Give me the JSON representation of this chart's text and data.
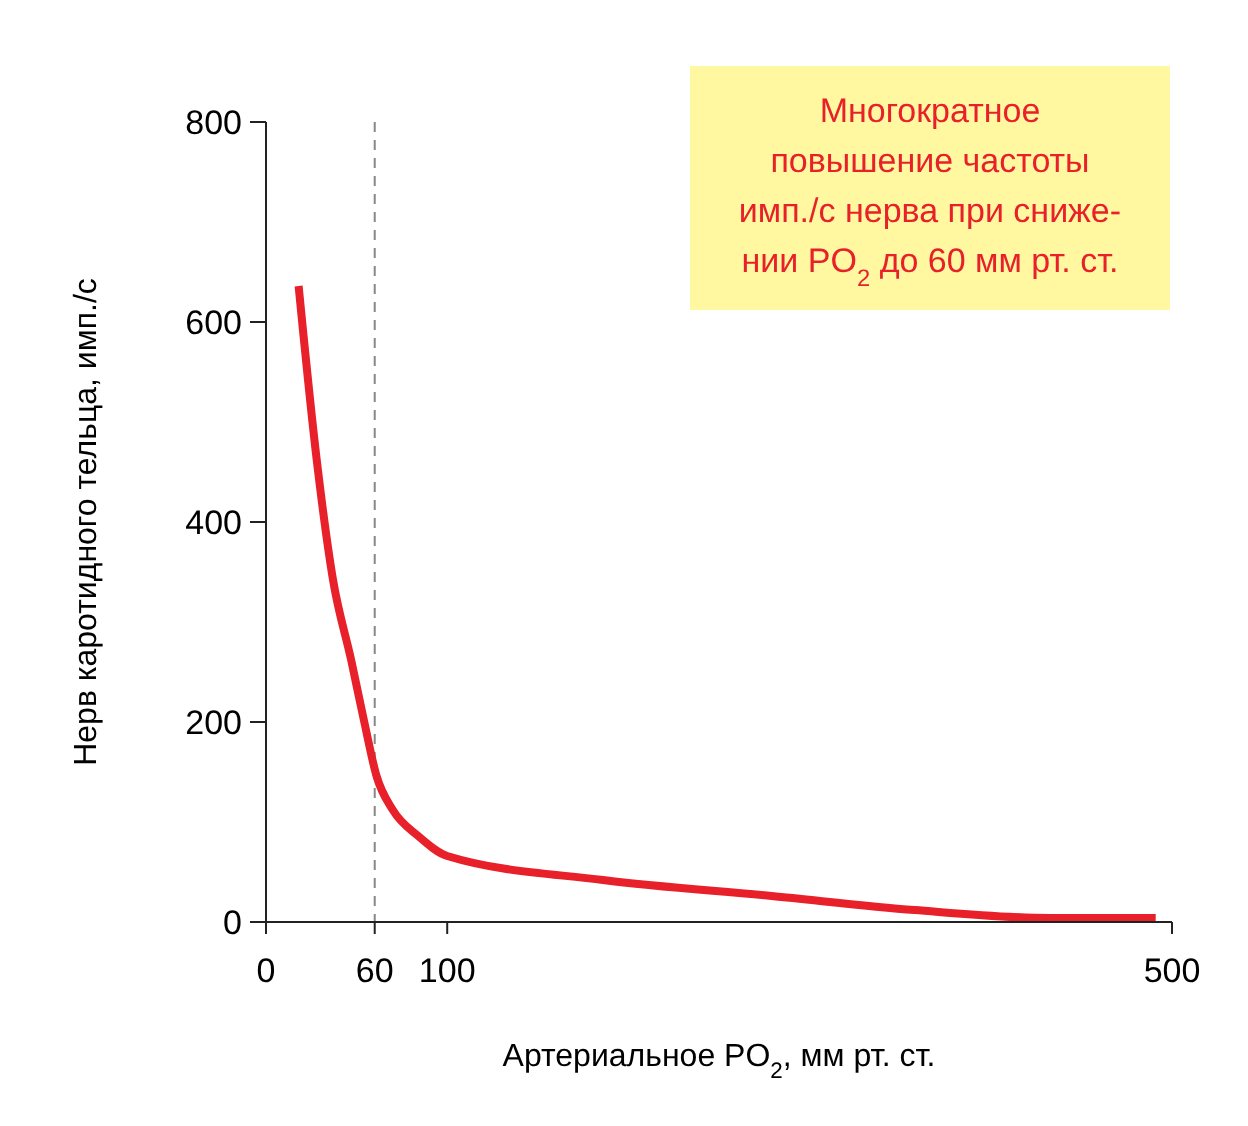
{
  "chart_data": {
    "type": "line",
    "xlabel": "Артериальное PO$_{2}$, мм рт. ст.",
    "ylabel": "Нерв каротидного тельца, имп./с",
    "annotations": [
      "Многократное\nповышение частоты\nимп./с нерва при сниже-\nнии PO$_{2}$ до 60 мм рт. ст."
    ],
    "xlim": [
      0,
      500
    ],
    "xticks": [
      0,
      60,
      100,
      500
    ],
    "ylim": [
      0,
      800
    ],
    "yticks": [
      0,
      200,
      400,
      600,
      800
    ],
    "grid": false,
    "marker": "none",
    "line_style": "solid",
    "ref_lines": [
      {
        "axis": "x",
        "value": 60,
        "color": "#888888",
        "line_style": "dashed"
      }
    ],
    "series": [
      {
        "color": "#e8202a",
        "x": [
          18,
          28,
          37,
          47,
          54,
          61,
          70,
          84,
          100,
          186,
          279,
          358,
          433,
          491
        ],
        "values": [
          636,
          462,
          342,
          262,
          202,
          146,
          112,
          86,
          66,
          42,
          26,
          12,
          4,
          4
        ]
      }
    ]
  }
}
